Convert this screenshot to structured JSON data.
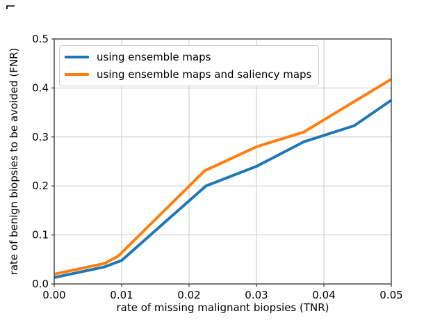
{
  "style": {
    "accent_blue": "#1f77b4",
    "accent_orange": "#ff7f0e",
    "grid_color": "#c9c9c9",
    "spine_color": "#333333",
    "tick_text_color": "#000000",
    "background": "#ffffff"
  },
  "chart_data": {
    "type": "line",
    "title": "",
    "xlabel": "rate of missing malignant biopsies (TNR)",
    "ylabel": "rate of benign biopsies to be avoided (FNR)",
    "xlim": [
      0.0,
      0.05
    ],
    "ylim": [
      0.0,
      0.5
    ],
    "x_ticks": [
      0.0,
      0.01,
      0.02,
      0.03,
      0.04,
      0.05
    ],
    "x_tick_labels": [
      "0.00",
      "0.01",
      "0.02",
      "0.03",
      "0.04",
      "0.05"
    ],
    "y_ticks": [
      0.0,
      0.1,
      0.2,
      0.3,
      0.4,
      0.5
    ],
    "y_tick_labels": [
      "0.0",
      "0.1",
      "0.2",
      "0.3",
      "0.4",
      "0.5"
    ],
    "grid": true,
    "legend_position": "upper-left",
    "series": [
      {
        "name": "using ensemble maps",
        "color": "#1f77b4",
        "x": [
          0.0,
          0.0075,
          0.01,
          0.0225,
          0.03,
          0.037,
          0.0445,
          0.05
        ],
        "y": [
          0.013,
          0.035,
          0.048,
          0.2,
          0.24,
          0.29,
          0.323,
          0.375
        ]
      },
      {
        "name": "using ensemble maps and saliency maps",
        "color": "#ff7f0e",
        "x": [
          0.0,
          0.0075,
          0.0095,
          0.0223,
          0.03,
          0.037,
          0.05
        ],
        "y": [
          0.02,
          0.042,
          0.057,
          0.231,
          0.28,
          0.31,
          0.418
        ]
      }
    ]
  }
}
